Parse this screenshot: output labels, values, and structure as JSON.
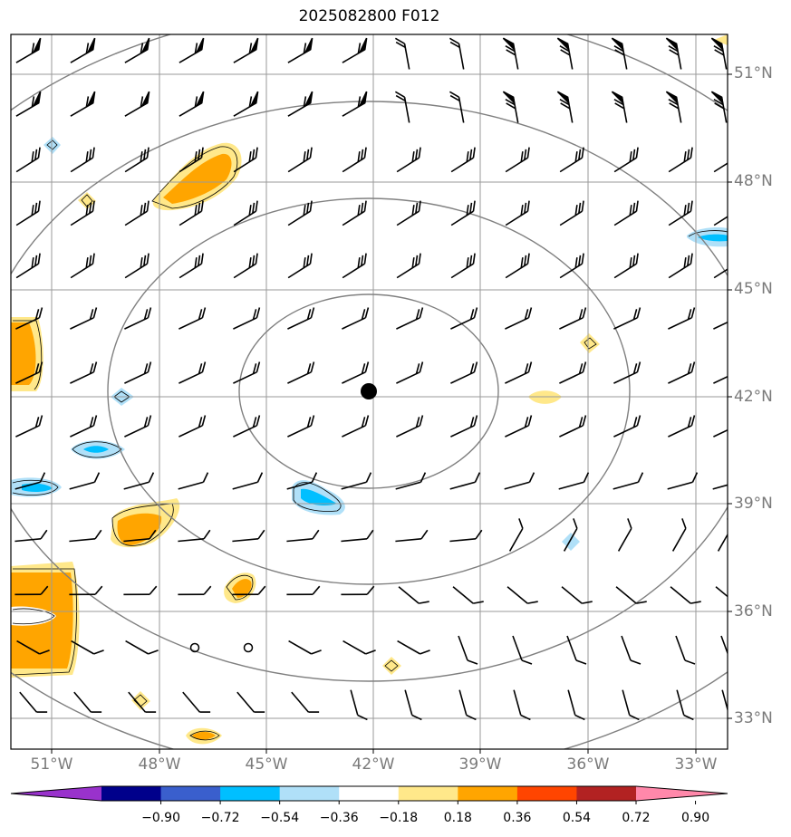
{
  "title": "2025082800 F012",
  "map": {
    "lat_labels": [
      "51°N",
      "48°N",
      "45°N",
      "42°N",
      "39°N",
      "36°N",
      "33°N"
    ],
    "lon_labels": [
      "51°W",
      "48°W",
      "45°W",
      "42°W",
      "39°W",
      "36°W",
      "33°W"
    ],
    "center_marker": {
      "lon": -42.0,
      "lat": 42.0
    },
    "range_rings": 4,
    "grid_color": "#9a9a9a",
    "ring_color": "#808080"
  },
  "colorbar": {
    "colors": [
      "#9932cc",
      "#00008b",
      "#3a5fcd",
      "#00bfff",
      "#b0e0f8",
      "#ffffff",
      "#ffe88a",
      "#ffa500",
      "#ff4500",
      "#b22222",
      "#ff88aa"
    ],
    "ticks": [
      "−0.90",
      "−0.72",
      "−0.54",
      "−0.36",
      "−0.18",
      "0.18",
      "0.36",
      "0.54",
      "0.72",
      "0.90"
    ]
  }
}
